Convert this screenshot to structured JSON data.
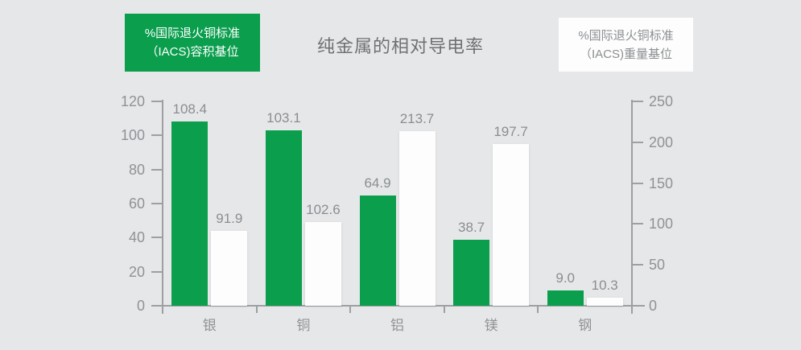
{
  "page": {
    "background": "#e6e7e8"
  },
  "header": {
    "left_badge": {
      "line1": "%国际退火铜标准",
      "line2": "（IACS)容积基位",
      "bg": "#0a9e4d",
      "text_color": "#ffffff"
    },
    "title": "纯金属的相对导电率",
    "right_badge": {
      "line1": "%国际退火铜标准",
      "line2": "（IACS)重量基位",
      "bg": "#fdfdfd",
      "text_color": "#8b8f92"
    }
  },
  "colors": {
    "axis": "#9ca0a2",
    "tick_text": "#8f9396",
    "value_text": "#8a8e91",
    "category_text": "#8f9396",
    "title_text": "#6e7174"
  },
  "chart_data": {
    "type": "bar",
    "title": "纯金属的相对导电率",
    "categories": [
      "银",
      "铜",
      "铝",
      "镁",
      "钢"
    ],
    "series": [
      {
        "name": "%国际退火铜标准（IACS)容积基位",
        "axis": "left",
        "color": "#0a9e4d",
        "values": [
          108.4,
          103.1,
          64.9,
          38.7,
          9.0
        ]
      },
      {
        "name": "%国际退火铜标准（IACS)重量基位",
        "axis": "right",
        "color": "#fdfdfd",
        "values": [
          91.9,
          102.6,
          213.7,
          197.7,
          10.3
        ]
      }
    ],
    "left_axis": {
      "min": 0,
      "max": 120,
      "ticks": [
        0,
        20,
        40,
        60,
        80,
        100,
        120
      ]
    },
    "right_axis": {
      "min": 0,
      "max": 250,
      "ticks": [
        0,
        50,
        100,
        150,
        200,
        250
      ]
    },
    "grid": false,
    "value_labels": true,
    "legend_position": "top"
  }
}
